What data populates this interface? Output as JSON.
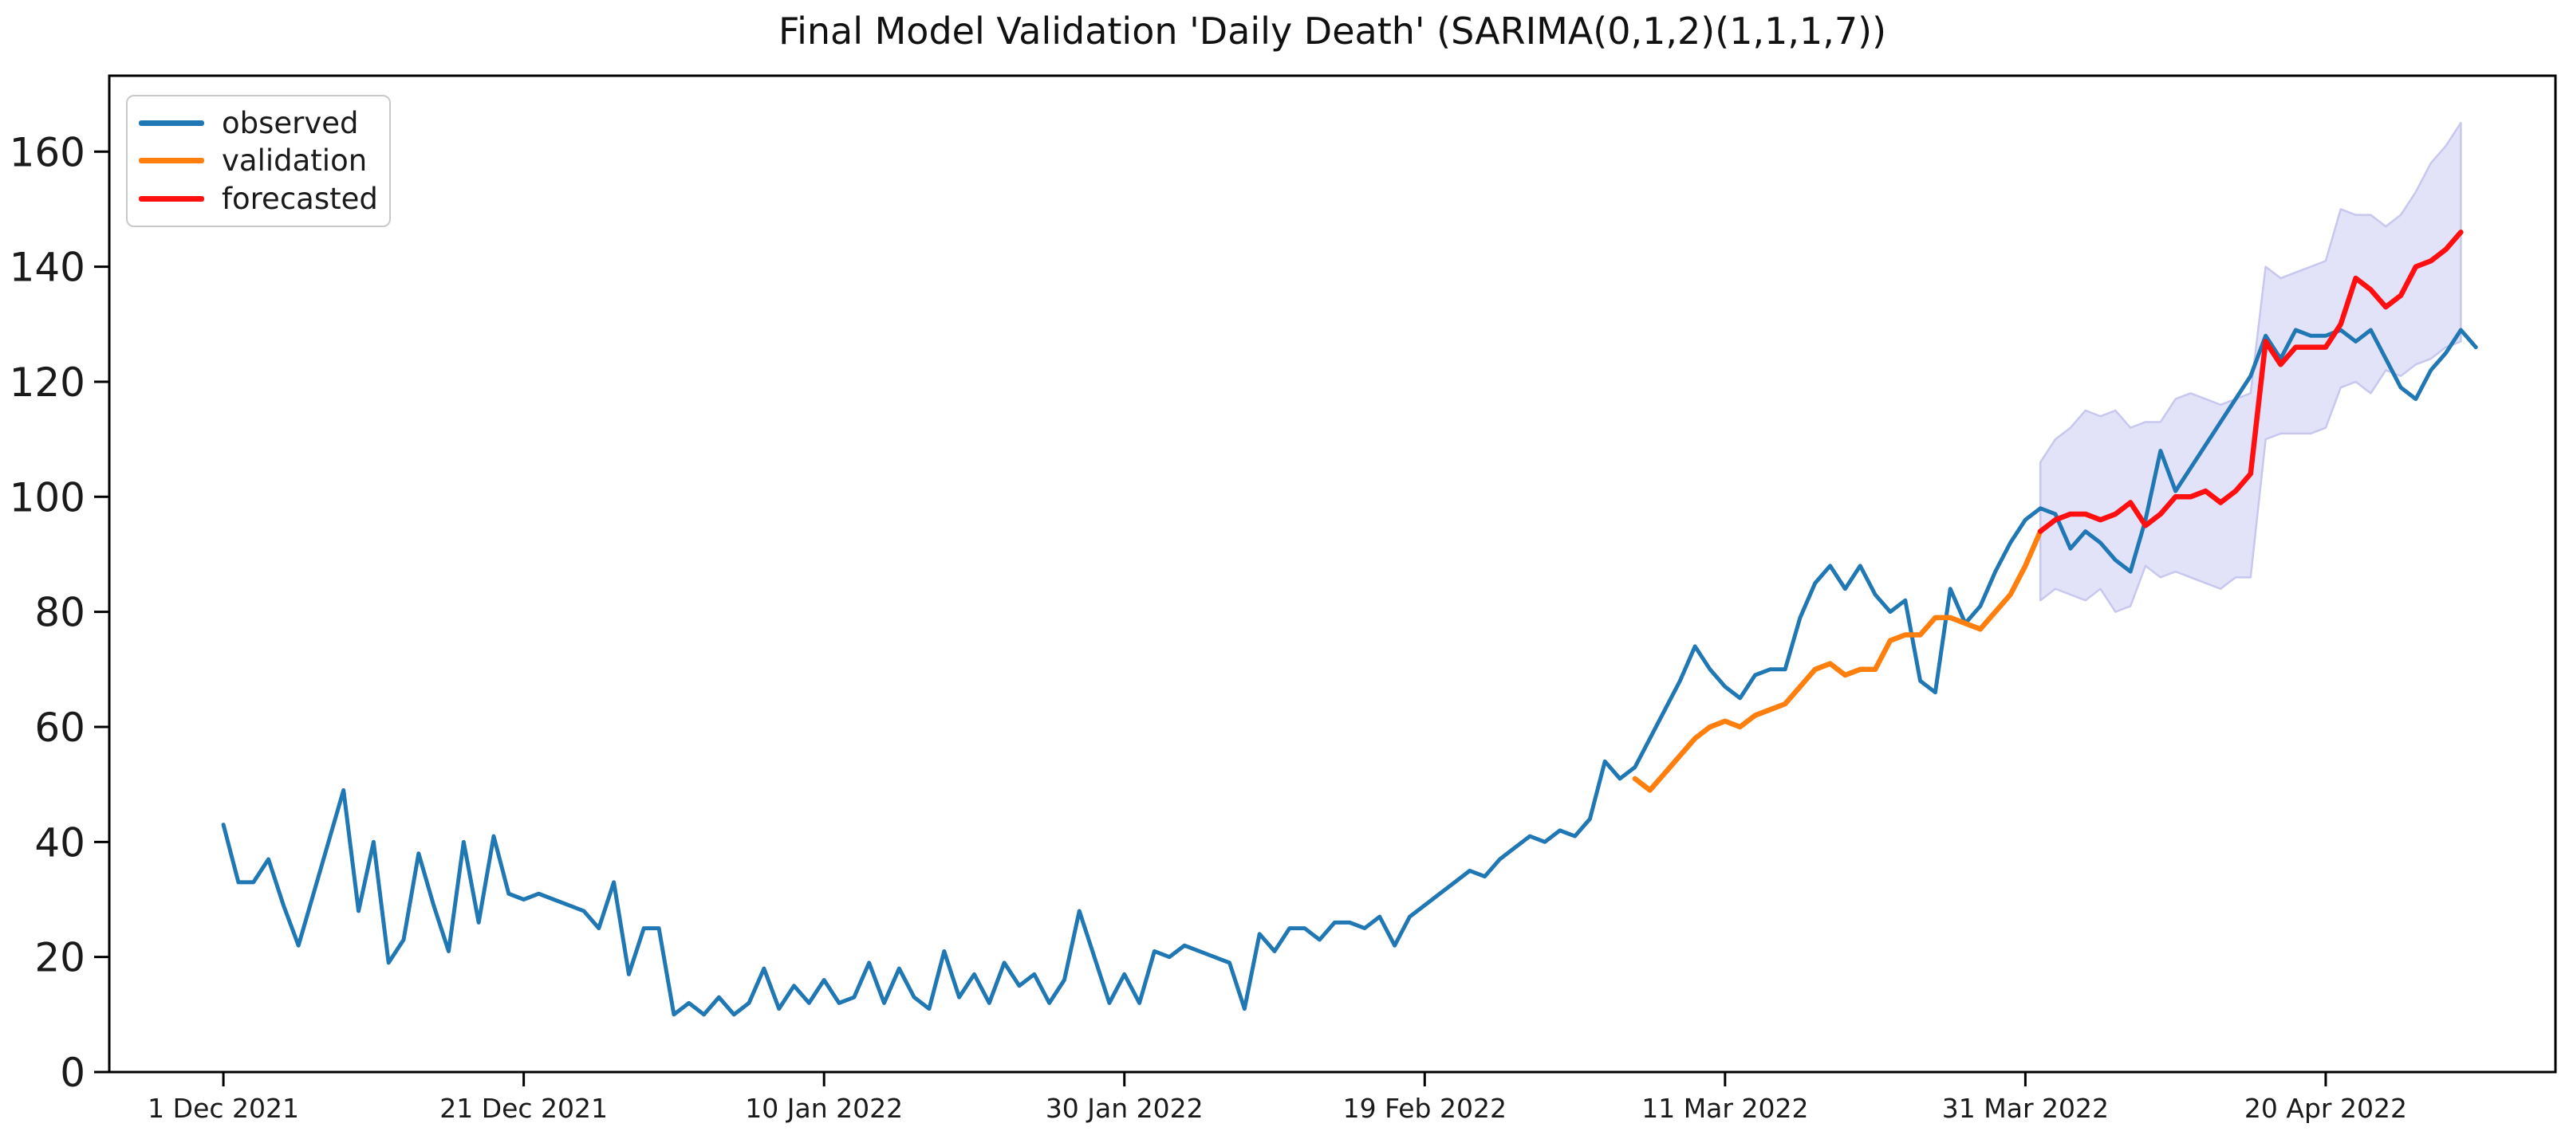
{
  "chart_data": {
    "type": "line",
    "title": "Final Model Validation 'Daily Death' (SARIMA(0,1,2)(1,1,1,7))",
    "xlabel": "",
    "ylabel": "",
    "grid": false,
    "legend_position": "upper-left",
    "x_start_date": "2021-12-01",
    "x_unit": "day index from 1 Dec 2021",
    "xlim_days": [
      -7.6,
      155.3
    ],
    "ylim": [
      0,
      173.2
    ],
    "x_tick_days": [
      0,
      20,
      40,
      60,
      80,
      100,
      120,
      140
    ],
    "x_tick_labels": [
      "1 Dec 2021",
      "21 Dec 2021",
      "10 Jan 2022",
      "30 Jan 2022",
      "19 Feb 2022",
      "11 Mar 2022",
      "31 Mar 2022",
      "20 Apr 2022"
    ],
    "y_ticks": [
      0,
      20,
      40,
      60,
      80,
      100,
      120,
      140,
      160
    ],
    "y_tick_labels": [
      "0",
      "20",
      "40",
      "60",
      "80",
      "100",
      "120",
      "140",
      "160"
    ],
    "series": [
      {
        "name": "observed",
        "color": "#1f77b4",
        "line_width": 5,
        "start_day": 0,
        "values": [
          43,
          33,
          33,
          37,
          29,
          22,
          31,
          40,
          49,
          28,
          40,
          19,
          23,
          38,
          29,
          21,
          40,
          26,
          41,
          31,
          30,
          31,
          30,
          29,
          28,
          25,
          33,
          17,
          25,
          25,
          10,
          12,
          10,
          13,
          10,
          12,
          18,
          11,
          15,
          12,
          16,
          12,
          13,
          19,
          12,
          18,
          13,
          11,
          21,
          13,
          17,
          12,
          19,
          15,
          17,
          12,
          16,
          28,
          20,
          12,
          17,
          12,
          21,
          20,
          22,
          21,
          20,
          19,
          11,
          24,
          21,
          25,
          25,
          23,
          26,
          26,
          25,
          27,
          22,
          27,
          29,
          31,
          33,
          35,
          34,
          37,
          39,
          41,
          40,
          42,
          41,
          44,
          54,
          51,
          53,
          58,
          63,
          68,
          74,
          70,
          67,
          65,
          69,
          70,
          70,
          79,
          85,
          88,
          84,
          88,
          83,
          80,
          82,
          68,
          66,
          84,
          78,
          81,
          87,
          92,
          96,
          98,
          97,
          91,
          94,
          92,
          89,
          87,
          96,
          108,
          101,
          105,
          109,
          113,
          117,
          121,
          128,
          124,
          129,
          128,
          128,
          129,
          127,
          129,
          124,
          119,
          117,
          122,
          125,
          129,
          126
        ]
      },
      {
        "name": "validation",
        "color": "#ff7f0e",
        "line_width": 6.5,
        "start_day": 94,
        "values": [
          51,
          49,
          52,
          55,
          58,
          60,
          61,
          60,
          62,
          63,
          64,
          67,
          70,
          71,
          69,
          70,
          70,
          75,
          76,
          76,
          79,
          79,
          78,
          77,
          80,
          83,
          88,
          94
        ]
      },
      {
        "name": "forecasted",
        "color": "#ff0f0f",
        "line_width": 6.5,
        "start_day": 121,
        "values": [
          94,
          96,
          97,
          97,
          96,
          97,
          99,
          95,
          97,
          100,
          100,
          101,
          99,
          101,
          104,
          127,
          123,
          126,
          126,
          126,
          130,
          138,
          136,
          133,
          135,
          140,
          141,
          143,
          146
        ]
      }
    ],
    "confidence_band": {
      "start_day": 121,
      "fill": "#e2e2f8",
      "edge": "#c7c7ef",
      "lower": [
        82,
        84,
        83,
        82,
        84,
        80,
        81,
        88,
        86,
        87,
        86,
        85,
        84,
        86,
        86,
        110,
        111,
        111,
        111,
        112,
        119,
        120,
        118,
        122,
        121,
        123,
        124,
        126,
        127
      ],
      "upper": [
        106,
        110,
        112,
        115,
        114,
        115,
        112,
        113,
        113,
        117,
        118,
        117,
        116,
        117,
        118,
        140,
        138,
        139,
        140,
        141,
        150,
        149,
        149,
        147,
        149,
        153,
        158,
        161,
        165
      ]
    },
    "axis_color": "#000000",
    "tick_label_color": "#1a1a1a"
  },
  "legend": {
    "items": [
      {
        "label": "observed",
        "color": "#1f77b4"
      },
      {
        "label": "validation",
        "color": "#ff7f0e"
      },
      {
        "label": "forecasted",
        "color": "#ff0f0f"
      }
    ]
  }
}
